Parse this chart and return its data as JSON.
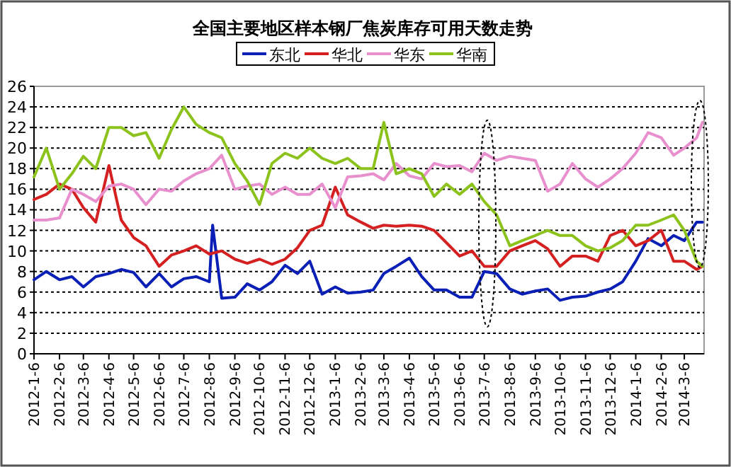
{
  "chart_data": {
    "type": "line",
    "title": "全国主要地区样本钢厂焦炭库存可用天数走势",
    "legend": "top",
    "grid": "y",
    "line_style": "solid",
    "marker": "none",
    "x": [
      "2012-01-06",
      "2012-01-21",
      "2012-02-06",
      "2012-02-21",
      "2012-03-06",
      "2012-03-21",
      "2012-04-06",
      "2012-04-21",
      "2012-05-06",
      "2012-05-21",
      "2012-06-06",
      "2012-06-21",
      "2012-07-06",
      "2012-07-21",
      "2012-08-06",
      "2012-08-21",
      "2012-09-06",
      "2012-09-21",
      "2012-10-06",
      "2012-10-21",
      "2012-11-06",
      "2012-11-21",
      "2012-12-06",
      "2012-12-21",
      "2013-01-06",
      "2013-01-21",
      "2013-02-06",
      "2013-02-21",
      "2013-03-06",
      "2013-03-21",
      "2013-04-06",
      "2013-04-21",
      "2013-05-06",
      "2013-05-21",
      "2013-06-06",
      "2013-06-21",
      "2013-07-06",
      "2013-07-21",
      "2013-08-06",
      "2013-08-21",
      "2013-09-06",
      "2013-09-21",
      "2013-10-06",
      "2013-10-21",
      "2013-11-06",
      "2013-11-21",
      "2013-12-06",
      "2013-12-21",
      "2014-01-06",
      "2014-01-21",
      "2014-02-06",
      "2014-02-21",
      "2014-03-06",
      "2014-03-21",
      "2014-03-28"
    ],
    "xlim": [
      "2012-01-06",
      "2014-03-30"
    ],
    "xticks": [
      {
        "value": "2012-01-06",
        "label": "2012-1-6"
      },
      {
        "value": "2012-02-06",
        "label": "2012-2-6"
      },
      {
        "value": "2012-03-06",
        "label": "2012-3-6"
      },
      {
        "value": "2012-04-06",
        "label": "2012-4-6"
      },
      {
        "value": "2012-05-06",
        "label": "2012-5-6"
      },
      {
        "value": "2012-06-06",
        "label": "2012-6-6"
      },
      {
        "value": "2012-07-06",
        "label": "2012-7-6"
      },
      {
        "value": "2012-08-06",
        "label": "2012-8-6"
      },
      {
        "value": "2012-09-06",
        "label": "2012-9-6"
      },
      {
        "value": "2012-10-06",
        "label": "2012-10-6"
      },
      {
        "value": "2012-11-06",
        "label": "2012-11-6"
      },
      {
        "value": "2012-12-06",
        "label": "2012-12-6"
      },
      {
        "value": "2013-01-06",
        "label": "2013-1-6"
      },
      {
        "value": "2013-02-06",
        "label": "2013-2-6"
      },
      {
        "value": "2013-03-06",
        "label": "2013-3-6"
      },
      {
        "value": "2013-04-06",
        "label": "2013-4-6"
      },
      {
        "value": "2013-05-06",
        "label": "2013-5-6"
      },
      {
        "value": "2013-06-06",
        "label": "2013-6-6"
      },
      {
        "value": "2013-07-06",
        "label": "2013-7-6"
      },
      {
        "value": "2013-08-06",
        "label": "2013-8-6"
      },
      {
        "value": "2013-09-06",
        "label": "2013-9-6"
      },
      {
        "value": "2013-10-06",
        "label": "2013-10-6"
      },
      {
        "value": "2013-11-06",
        "label": "2013-11-6"
      },
      {
        "value": "2013-12-06",
        "label": "2013-12-6"
      },
      {
        "value": "2014-01-06",
        "label": "2014-1-6"
      },
      {
        "value": "2014-02-06",
        "label": "2014-2-6"
      },
      {
        "value": "2014-03-06",
        "label": "2014-3-6"
      }
    ],
    "ylim": [
      0,
      26
    ],
    "yticks": [
      0,
      2,
      4,
      6,
      8,
      10,
      12,
      14,
      16,
      18,
      20,
      22,
      24,
      26
    ],
    "series": [
      {
        "name": "东北",
        "color": "#0a1fb5",
        "x": [
          "2012-01-06",
          "2012-01-21",
          "2012-02-06",
          "2012-02-21",
          "2012-03-06",
          "2012-03-21",
          "2012-04-06",
          "2012-04-21",
          "2012-05-06",
          "2012-05-21",
          "2012-06-06",
          "2012-06-21",
          "2012-07-06",
          "2012-07-21",
          "2012-08-06",
          "2012-08-10",
          "2012-08-21",
          "2012-09-06",
          "2012-09-21",
          "2012-10-06",
          "2012-10-21",
          "2012-11-06",
          "2012-11-21",
          "2012-12-06",
          "2012-12-21",
          "2013-01-06",
          "2013-01-21",
          "2013-02-06",
          "2013-02-21",
          "2013-03-06",
          "2013-03-21",
          "2013-04-06",
          "2013-04-21",
          "2013-05-06",
          "2013-05-21",
          "2013-06-06",
          "2013-06-21",
          "2013-07-06",
          "2013-07-21",
          "2013-08-06",
          "2013-08-21",
          "2013-09-06",
          "2013-09-21",
          "2013-10-06",
          "2013-10-21",
          "2013-11-06",
          "2013-11-21",
          "2013-12-06",
          "2013-12-21",
          "2014-01-06",
          "2014-01-21",
          "2014-02-06",
          "2014-02-21",
          "2014-03-06",
          "2014-03-21",
          "2014-03-28"
        ],
        "values": [
          7.2,
          8,
          7.2,
          7.5,
          6.5,
          7.5,
          7.8,
          8.2,
          7.9,
          6.5,
          7.8,
          6.5,
          7.3,
          7.5,
          7,
          12.5,
          5.4,
          5.5,
          6.8,
          6.2,
          7,
          8.6,
          7.8,
          9,
          5.8,
          6.5,
          5.9,
          6,
          6.2,
          7.8,
          8.5,
          9.3,
          7.5,
          6.2,
          6.2,
          5.5,
          5.5,
          8,
          7.8,
          6.3,
          5.8,
          6.1,
          6.3,
          5.2,
          5.5,
          5.6,
          6,
          6.3,
          7,
          9,
          11.2,
          10.5,
          11.5,
          11,
          12.8,
          12.8
        ]
      },
      {
        "name": "华北",
        "color": "#d42020",
        "values": [
          15,
          15.5,
          16.5,
          16,
          14.2,
          12.8,
          18.3,
          13,
          11.3,
          10.5,
          8.5,
          9.6,
          10,
          10.5,
          9.7,
          10,
          9.2,
          8.8,
          9.2,
          8.7,
          9.2,
          10.3,
          12,
          12.5,
          16.2,
          13.5,
          12.8,
          12.2,
          12.5,
          12.4,
          12.5,
          12.4,
          12,
          10.8,
          9.5,
          10,
          8.5,
          8.5,
          10,
          10.5,
          11,
          10.2,
          8.5,
          9.5,
          9.5,
          9,
          11.5,
          12,
          10.5,
          11,
          12,
          9,
          9,
          8.2,
          8.5
        ]
      },
      {
        "name": "华东",
        "color": "#e88fce",
        "values": [
          13,
          13,
          13.2,
          16,
          15.5,
          14.8,
          16.3,
          16.5,
          16,
          14.5,
          16,
          15.8,
          16.8,
          17.5,
          18,
          19.3,
          16,
          16.3,
          16.5,
          15.5,
          16.2,
          15.5,
          15.5,
          16.5,
          14.2,
          17.2,
          17.3,
          17.5,
          16.9,
          18.5,
          17.3,
          17,
          18.5,
          18.2,
          18.3,
          17.7,
          19.5,
          18.8,
          19.2,
          19,
          18.8,
          15.8,
          16.5,
          18.5,
          17,
          16.2,
          17,
          18,
          19.5,
          21.5,
          21,
          19.3,
          20,
          21,
          22.5
        ]
      },
      {
        "name": "华南",
        "color": "#8cc21c",
        "values": [
          17.2,
          20,
          16,
          17.5,
          19.2,
          18,
          22,
          22,
          21.2,
          21.5,
          19,
          21.8,
          24,
          22.3,
          21.5,
          21,
          18.5,
          16.8,
          14.5,
          18.5,
          19.5,
          19,
          20,
          19,
          18.5,
          19,
          18,
          18,
          22.5,
          17.5,
          18,
          17.5,
          15.3,
          16.5,
          15.5,
          16.5,
          14.8,
          13.5,
          10.5,
          11,
          11.5,
          12,
          11.5,
          11.5,
          10.5,
          10,
          10.3,
          11,
          12.5,
          12.5,
          13,
          13.5,
          12,
          9,
          8.5
        ]
      }
    ]
  }
}
